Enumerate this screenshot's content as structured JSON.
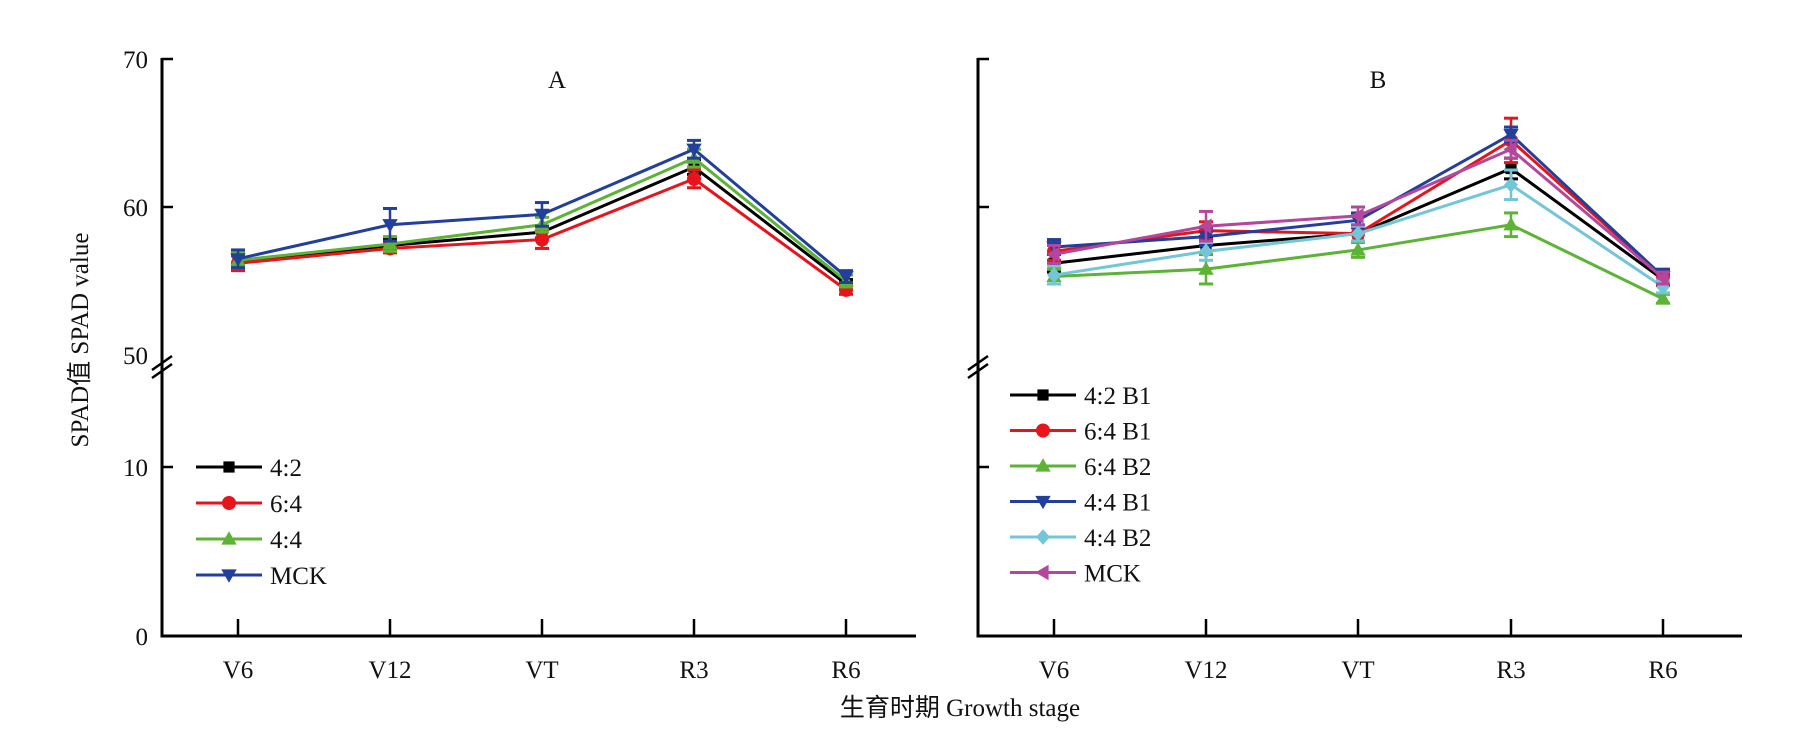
{
  "chart_data": {
    "type": "line",
    "ylabel": "SPAD值 SPAD value",
    "xlabel": "生育时期 Growth stage",
    "categories": [
      "V6",
      "V12",
      "VT",
      "R3",
      "R6"
    ],
    "y_axis": {
      "ticks": [
        0,
        10,
        50,
        60,
        70
      ],
      "tick_labels": [
        "0",
        "10",
        "50",
        "60",
        "70"
      ],
      "broken": true,
      "break_between": [
        10,
        50
      ],
      "ylim": [
        0,
        70
      ]
    },
    "grid": false,
    "panels": [
      {
        "title": "A",
        "legend_position": "bottom-left",
        "series": [
          {
            "name": "4:2",
            "color": "#000000",
            "marker": "square",
            "values": [
              56.3,
              57.4,
              58.3,
              62.7,
              54.8
            ],
            "errors": [
              0.4,
              0.4,
              0.4,
              0.5,
              0.3
            ]
          },
          {
            "name": "6:4",
            "color": "#e8141c",
            "marker": "circle",
            "values": [
              56.2,
              57.2,
              57.8,
              61.9,
              54.4
            ],
            "errors": [
              0.5,
              0.3,
              0.6,
              0.6,
              0.3
            ]
          },
          {
            "name": "4:4",
            "color": "#5cb335",
            "marker": "triangle-up",
            "values": [
              56.4,
              57.5,
              58.8,
              63.3,
              55.0
            ],
            "errors": [
              0.5,
              0.5,
              0.5,
              0.6,
              0.4
            ]
          },
          {
            "name": "MCK",
            "color": "#223f9b",
            "marker": "triangle-down",
            "values": [
              56.5,
              58.8,
              59.5,
              63.9,
              55.3
            ],
            "errors": [
              0.6,
              1.1,
              0.8,
              0.6,
              0.4
            ]
          }
        ]
      },
      {
        "title": "B",
        "legend_position": "bottom-left",
        "series": [
          {
            "name": "4:2 B1",
            "color": "#000000",
            "marker": "square",
            "values": [
              56.2,
              57.4,
              58.2,
              62.6,
              55.1
            ],
            "errors": [
              0.6,
              0.6,
              0.5,
              0.7,
              0.4
            ]
          },
          {
            "name": "6:4 B1",
            "color": "#e8141c",
            "marker": "circle",
            "values": [
              57.0,
              58.4,
              58.2,
              64.5,
              55.3
            ],
            "errors": [
              0.6,
              0.6,
              0.5,
              1.5,
              0.4
            ]
          },
          {
            "name": "6:4 B2",
            "color": "#5cb335",
            "marker": "triangle-up",
            "values": [
              55.3,
              55.8,
              57.1,
              58.8,
              53.8
            ],
            "errors": [
              0.5,
              1.0,
              0.5,
              0.8,
              0.3
            ]
          },
          {
            "name": "4:4 B1",
            "color": "#223f9b",
            "marker": "triangle-down",
            "values": [
              57.3,
              58.0,
              59.1,
              64.9,
              55.3
            ],
            "errors": [
              0.5,
              0.6,
              0.5,
              0.5,
              0.5
            ]
          },
          {
            "name": "4:4 B2",
            "color": "#73c6d8",
            "marker": "diamond",
            "values": [
              55.4,
              57.0,
              58.2,
              61.5,
              54.6
            ],
            "errors": [
              0.6,
              0.6,
              0.5,
              1.0,
              0.4
            ]
          },
          {
            "name": "MCK",
            "color": "#b4469c",
            "marker": "triangle-left",
            "values": [
              56.8,
              58.7,
              59.4,
              63.9,
              55.2
            ],
            "errors": [
              0.6,
              1.0,
              0.6,
              0.6,
              0.4
            ]
          }
        ]
      }
    ]
  }
}
